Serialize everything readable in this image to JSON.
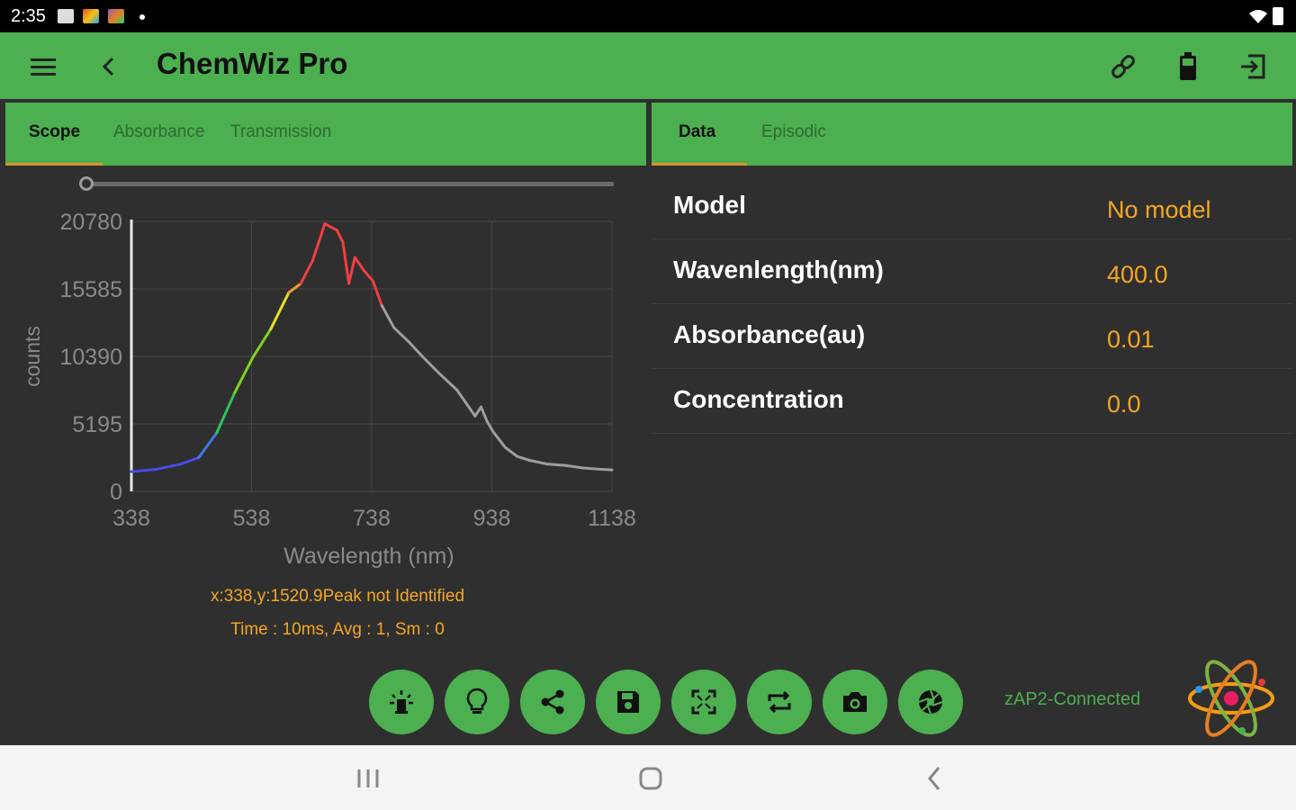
{
  "status": {
    "time": "2:35"
  },
  "app": {
    "title": "ChemWiz Pro"
  },
  "left_tabs": [
    {
      "label": "Scope",
      "active": true
    },
    {
      "label": "Absorbance",
      "active": false
    },
    {
      "label": "Transmission",
      "active": false
    }
  ],
  "right_tabs": [
    {
      "label": "Data",
      "active": true
    },
    {
      "label": "Episodic",
      "active": false
    }
  ],
  "data_rows": [
    {
      "label": "Model",
      "value": "No model"
    },
    {
      "label": "Wavenlength(nm)",
      "value": "400.0"
    },
    {
      "label": "Absorbance(au)",
      "value": "0.01"
    },
    {
      "label": "Concentration",
      "value": "0.0"
    }
  ],
  "readout": {
    "cursor": "x:338,y:1520.9Peak not Identified",
    "params": "Time : 10ms,  Avg : 1,  Sm : 0"
  },
  "connection_status": "zAP2-Connected",
  "slider": {
    "value": 0
  },
  "chart_data": {
    "type": "line",
    "xlabel": "Wavelength (nm)",
    "ylabel": "counts",
    "xlim": [
      338,
      1138
    ],
    "ylim": [
      0,
      20780
    ],
    "xticks": [
      "338",
      "538",
      "738",
      "938",
      "1138"
    ],
    "yticks": [
      "0",
      "5195",
      "10390",
      "15585",
      "20780"
    ],
    "grid": true,
    "series": [
      {
        "x": [
          338,
          380,
          420,
          450,
          480,
          510,
          540,
          570,
          600,
          620,
          640,
          660,
          680,
          690,
          700,
          710,
          725,
          740,
          755,
          775,
          800,
          820,
          850,
          880,
          910,
          920,
          930,
          940,
          960,
          980,
          1000,
          1030,
          1060,
          1090,
          1120,
          1138
        ],
        "y": [
          1520,
          1700,
          2100,
          2600,
          4500,
          7600,
          10300,
          12500,
          15300,
          16000,
          17800,
          20600,
          20100,
          19200,
          16000,
          18000,
          17000,
          16200,
          14300,
          12600,
          11500,
          10500,
          9100,
          7800,
          5800,
          6500,
          5400,
          4600,
          3400,
          2700,
          2400,
          2100,
          2000,
          1800,
          1700,
          1650
        ]
      }
    ]
  }
}
